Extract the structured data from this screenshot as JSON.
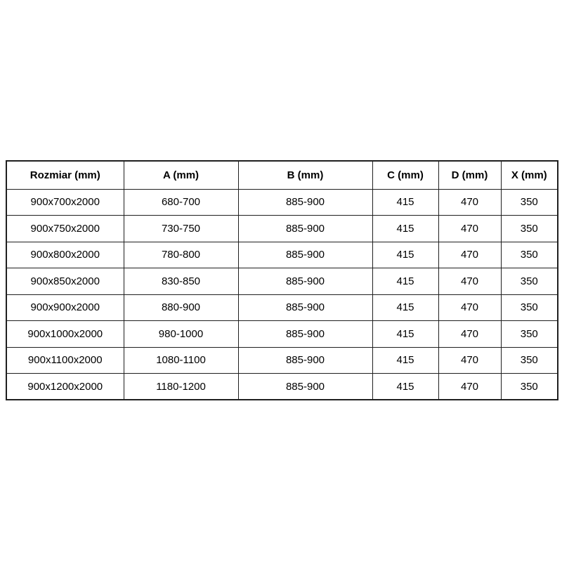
{
  "page": {
    "background_color": "#ffffff",
    "border_color": "#1f1f1f",
    "text_color": "#000000"
  },
  "table": {
    "headers": [
      "Rozmiar (mm)",
      "A (mm)",
      "B (mm)",
      "C (mm)",
      "D (mm)",
      "X (mm)"
    ],
    "rows": [
      [
        "900x700x2000",
        "680-700",
        "885-900",
        "415",
        "470",
        "350"
      ],
      [
        "900x750x2000",
        "730-750",
        "885-900",
        "415",
        "470",
        "350"
      ],
      [
        "900x800x2000",
        "780-800",
        "885-900",
        "415",
        "470",
        "350"
      ],
      [
        "900x850x2000",
        "830-850",
        "885-900",
        "415",
        "470",
        "350"
      ],
      [
        "900x900x2000",
        "880-900",
        "885-900",
        "415",
        "470",
        "350"
      ],
      [
        "900x1000x2000",
        "980-1000",
        "885-900",
        "415",
        "470",
        "350"
      ],
      [
        "900x1100x2000",
        "1080-1100",
        "885-900",
        "415",
        "470",
        "350"
      ],
      [
        "900x1200x2000",
        "1180-1200",
        "885-900",
        "415",
        "470",
        "350"
      ]
    ]
  }
}
